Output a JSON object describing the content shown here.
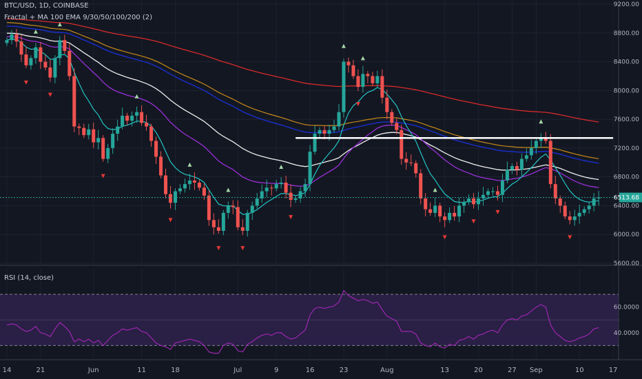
{
  "header": {
    "title": "BTC/USD, 1D, COINBASE",
    "study": "Fractal + MA 100 EMA 9/30/50/100/200 (2)",
    "rsi_label": "RSI (14, close)"
  },
  "colors": {
    "background": "#131722",
    "up": "#26a69a",
    "down": "#ef5350",
    "ema9": "#22c5c5",
    "ema30": "#9b30d9",
    "ema50": "#f0f0f0",
    "ema100": "#1a2fd0",
    "ema100b": "#c88a18",
    "ema200": "#d92a2a",
    "rsi": "#9c27b0",
    "rsi_band": "#2a1f45",
    "support_line": "#ffffff",
    "price_line": "#26a69a",
    "fractal_up": "#a5d6a7",
    "fractal_down": "#e53935"
  },
  "chart_data": [
    {
      "type": "candlestick",
      "name": "price",
      "ylim": [
        5600,
        9200
      ],
      "y_ticks": [
        "9200.00",
        "8800.00",
        "8400.00",
        "8000.00",
        "7600.00",
        "7200.00",
        "6800.00",
        "6400.00",
        "6000.00",
        "5600.00"
      ],
      "x_labels": [
        {
          "label": "14",
          "day": 0
        },
        {
          "label": "21",
          "day": 7
        },
        {
          "label": "Jun",
          "day": 18
        },
        {
          "label": "11",
          "day": 28
        },
        {
          "label": "18",
          "day": 35
        },
        {
          "label": "Jul",
          "day": 48
        },
        {
          "label": "9",
          "day": 56
        },
        {
          "label": "16",
          "day": 63
        },
        {
          "label": "23",
          "day": 70
        },
        {
          "label": "Aug",
          "day": 79
        },
        {
          "label": "13",
          "day": 91
        },
        {
          "label": "20",
          "day": 98
        },
        {
          "label": "27",
          "day": 105
        },
        {
          "label": "Sep",
          "day": 110
        },
        {
          "label": "10",
          "day": 119
        },
        {
          "label": "17",
          "day": 126
        }
      ],
      "last_price": "6513.68",
      "support_level": {
        "price": 7340,
        "from_day": 60,
        "to_day": 126
      },
      "closes": [
        8700,
        8780,
        8680,
        8500,
        8350,
        8450,
        8600,
        8400,
        8320,
        8180,
        8450,
        8700,
        8550,
        8200,
        7500,
        7480,
        7380,
        7460,
        7280,
        7340,
        7050,
        7200,
        7400,
        7500,
        7650,
        7580,
        7650,
        7700,
        7550,
        7500,
        7300,
        7080,
        6820,
        6560,
        6440,
        6600,
        6640,
        6700,
        6750,
        6720,
        6650,
        6540,
        6200,
        6100,
        6050,
        6300,
        6400,
        6380,
        6100,
        6050,
        6300,
        6400,
        6500,
        6600,
        6650,
        6640,
        6700,
        6720,
        6580,
        6480,
        6500,
        6600,
        6700,
        7150,
        7400,
        7450,
        7400,
        7450,
        7500,
        7700,
        8400,
        8350,
        8200,
        8050,
        8230,
        8200,
        8100,
        8200,
        7900,
        7700,
        7550,
        7450,
        7050,
        7000,
        6990,
        6850,
        6500,
        6350,
        6300,
        6400,
        6250,
        6200,
        6300,
        6250,
        6400,
        6450,
        6500,
        6420,
        6500,
        6550,
        6600,
        6600,
        6550,
        6750,
        6900,
        6950,
        6900,
        7050,
        7100,
        7200,
        7300,
        7350,
        7300,
        6700,
        6500,
        6400,
        6250,
        6200,
        6250,
        6300,
        6350,
        6400,
        6500,
        6513
      ]
    },
    {
      "type": "line",
      "name": "RSI",
      "ylim": [
        20,
        90
      ],
      "y_ticks": [
        "60.0000",
        "40.0000"
      ],
      "band": [
        30,
        70
      ],
      "values": [
        46,
        47,
        46,
        43,
        41,
        42,
        45,
        40,
        39,
        37,
        43,
        48,
        45,
        41,
        33,
        35,
        33,
        35,
        32,
        34,
        30,
        34,
        38,
        40,
        43,
        42,
        43,
        44,
        41,
        40,
        36,
        32,
        30,
        29,
        27,
        32,
        33,
        34,
        35,
        34,
        33,
        30,
        25,
        24,
        24,
        30,
        32,
        31,
        26,
        25,
        31,
        33,
        36,
        38,
        39,
        38,
        40,
        40,
        37,
        35,
        36,
        39,
        42,
        54,
        59,
        60,
        59,
        60,
        61,
        64,
        73,
        69,
        67,
        65,
        66,
        65,
        63,
        64,
        58,
        53,
        51,
        49,
        41,
        41,
        41,
        39,
        32,
        30,
        29,
        32,
        29,
        28,
        31,
        30,
        34,
        35,
        37,
        35,
        38,
        39,
        41,
        42,
        40,
        46,
        50,
        51,
        50,
        53,
        54,
        57,
        60,
        62,
        60,
        46,
        40,
        37,
        34,
        33,
        34,
        36,
        37,
        39,
        43,
        44
      ]
    }
  ]
}
